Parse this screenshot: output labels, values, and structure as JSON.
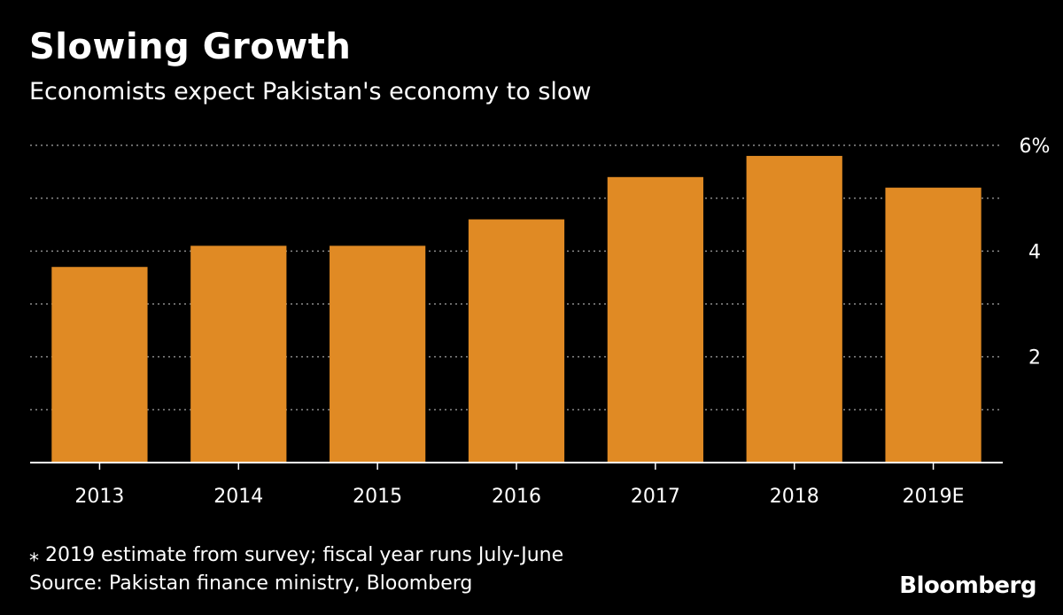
{
  "chart_data": {
    "type": "bar",
    "title": "Slowing Growth",
    "subtitle": "Economists expect Pakistan's economy to slow",
    "categories": [
      "2013",
      "2014",
      "2015",
      "2016",
      "2017",
      "2018",
      "2019E"
    ],
    "values": [
      3.7,
      4.1,
      4.1,
      4.6,
      5.4,
      5.8,
      5.2
    ],
    "ylim": [
      0,
      6
    ],
    "ytick_values": [
      2,
      4,
      6
    ],
    "ytick_labels": [
      "2",
      "4",
      "6%"
    ],
    "grid": true,
    "xlabel": "",
    "ylabel": "",
    "colors": {
      "bar": "#E08A24",
      "background": "#000000",
      "text": "#FFFFFF",
      "grid": "#8A8A8A"
    }
  },
  "footer": {
    "note": "⁎ 2019 estimate from survey; fiscal year runs July-June",
    "source": "Source: Pakistan finance ministry, Bloomberg",
    "brand": "Bloomberg"
  }
}
